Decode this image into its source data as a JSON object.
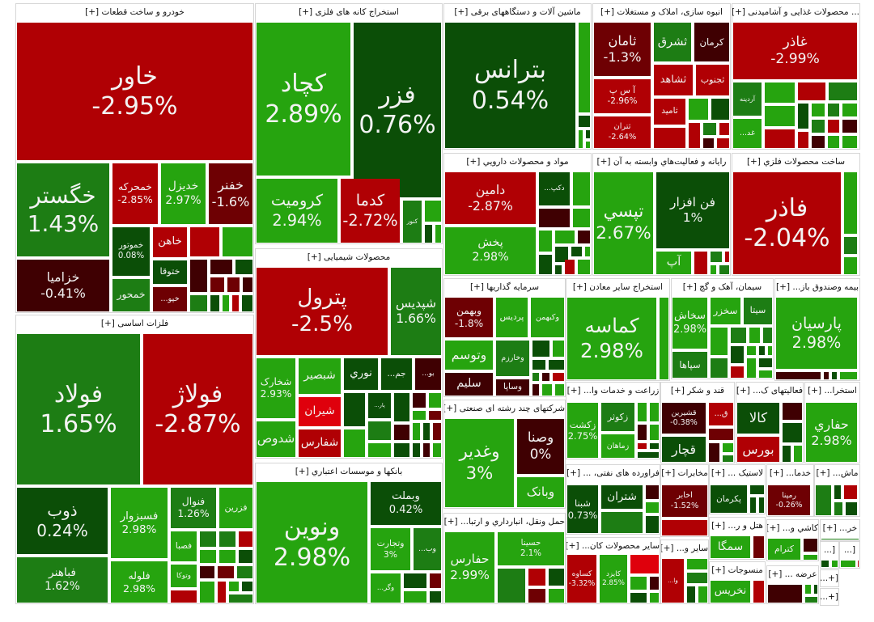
{
  "palette": {
    "R": "#b00004",
    "B": "#df000c",
    "M": "#6e0003",
    "K": "#3f0002",
    "D": "#0b4e07",
    "G": "#1d7d14",
    "L": "#26a40f"
  },
  "sectors": [
    {
      "title": "خودرو و ساخت قطعات [+]",
      "tiles": [
        [
          "خاور",
          "-2.95%",
          "R"
        ],
        [
          "خگستر",
          "1.43%",
          "G"
        ],
        [
          "خزامیا",
          "-0.41%",
          "K"
        ],
        [
          "خمحرکه",
          "-2.85%",
          "R"
        ],
        [
          "خدیزل",
          "2.97%",
          "L"
        ],
        [
          "خفنر",
          "-1.6%",
          "M"
        ],
        [
          "خموتور",
          "0.08%",
          "D"
        ],
        [
          "خمحور",
          "",
          "G"
        ],
        [
          "خاهن",
          "",
          "R"
        ],
        [
          "ختوقا",
          "",
          "D"
        ],
        [
          "خپو...",
          "",
          "M"
        ]
      ]
    },
    {
      "title": "فلزات اساسی [+]",
      "tiles": [
        [
          "فولاد",
          "1.65%",
          "G"
        ],
        [
          "فولاژ",
          "-2.87%",
          "R"
        ],
        [
          "ذوب",
          "0.24%",
          "D"
        ],
        [
          "فباهنر",
          "1.62%",
          "G"
        ],
        [
          "فسبزوار",
          "2.98%",
          "L"
        ],
        [
          "فلوله",
          "2.98%",
          "L"
        ],
        [
          "فنوال",
          "1.26%",
          "G"
        ],
        [
          "فزرین",
          "",
          "L"
        ],
        [
          "فصبا",
          "",
          "L"
        ],
        [
          "وتوکا",
          "",
          "L"
        ]
      ]
    },
    {
      "title": "استخراج کانه های فلزی [+]",
      "tiles": [
        [
          "کچاد",
          "2.89%",
          "L"
        ],
        [
          "فزر",
          "0.76%",
          "D"
        ],
        [
          "کرومیت",
          "2.94%",
          "L"
        ],
        [
          "کدما",
          "-2.72%",
          "R"
        ],
        [
          "کنور",
          "",
          "G"
        ]
      ]
    },
    {
      "title": "محصولات شیمیایی [+]",
      "tiles": [
        [
          "پترول",
          "-2.5%",
          "R"
        ],
        [
          "شپدیس",
          "1.66%",
          "G"
        ],
        [
          "شخارک",
          "2.93%",
          "L"
        ],
        [
          "شدوص",
          "",
          "L"
        ],
        [
          "شبصیر",
          "",
          "L"
        ],
        [
          "شیران",
          "",
          "B"
        ],
        [
          "شفارس",
          "",
          "R"
        ],
        [
          "نوري",
          "",
          "D"
        ],
        [
          "جم...",
          "",
          "D"
        ],
        [
          "بو...",
          "",
          "K"
        ],
        [
          "پار...",
          "",
          "D"
        ]
      ]
    },
    {
      "title": "بانکها و موسسات اعتباري [+]",
      "tiles": [
        [
          "ونوین",
          "2.98%",
          "L"
        ],
        [
          "وبملت",
          "0.42%",
          "D"
        ],
        [
          "وتجارت",
          "3%",
          "L"
        ],
        [
          "وب...",
          "",
          "G"
        ],
        [
          "وگر...",
          "",
          "L"
        ]
      ]
    },
    {
      "title": "ماشین آلات و دستگاههای برقی [+]",
      "tiles": [
        [
          "بترانس",
          "0.54%",
          "D"
        ]
      ]
    },
    {
      "title": "انبوه سازی، املاک و مستغلات [+]",
      "tiles": [
        [
          "ثامان",
          "-1.3%",
          "M"
        ],
        [
          "آ س پ",
          "-2.96%",
          "R"
        ],
        [
          "ثتران",
          "-2.64%",
          "R"
        ],
        [
          "ثشرق",
          "",
          "G"
        ],
        [
          "کرمان",
          "",
          "K"
        ],
        [
          "ثشاهد",
          "",
          "R"
        ],
        [
          "ثجنوب",
          "",
          "R"
        ],
        [
          "ثامید",
          "",
          "R"
        ]
      ]
    },
    {
      "title": "... محصولات غذایی و آشامیدنی [+]",
      "tiles": [
        [
          "غاذر",
          "-2.99%",
          "R"
        ],
        [
          "آردینه",
          "",
          "G"
        ],
        [
          "غد...",
          "",
          "L"
        ]
      ]
    },
    {
      "title": "مواد و محصولات دارويي [+]",
      "tiles": [
        [
          "دامین",
          "-2.87%",
          "R"
        ],
        [
          "دکپ...",
          "",
          "D"
        ],
        [
          "پخش",
          "2.98%",
          "L"
        ]
      ]
    },
    {
      "title": "رایانه و فعالیت‌هاي وابسته به آن [+]",
      "tiles": [
        [
          "تپسي",
          "2.67%",
          "L"
        ],
        [
          "فن افزار",
          "1%",
          "D"
        ],
        [
          "آپ",
          "",
          "L"
        ]
      ]
    },
    {
      "title": "ساخت محصولات فلزي [+]",
      "tiles": [
        [
          "فاذر",
          "-2.04%",
          "R"
        ]
      ]
    },
    {
      "title": "سرمایه گذاریها [+]",
      "tiles": [
        [
          "وبهمن",
          "-1.8%",
          "M"
        ],
        [
          "پردیس",
          "",
          "L"
        ],
        [
          "وکبهمن",
          "",
          "L"
        ],
        [
          "وتوسم",
          "",
          "L"
        ],
        [
          "وخارزم",
          "",
          "G"
        ],
        [
          "سلیم",
          "",
          "K"
        ],
        [
          "وساپا",
          "",
          "K"
        ]
      ]
    },
    {
      "title": "استخراج سایر معادن [+]",
      "tiles": [
        [
          "کماسه",
          "2.98%",
          "L"
        ]
      ]
    },
    {
      "title": "سیمان، آهک و گچ [+]",
      "tiles": [
        [
          "سخاش",
          "2.98%",
          "L"
        ],
        [
          "سپاها",
          "",
          "G"
        ],
        [
          "سخزر",
          "",
          "L"
        ],
        [
          "سیتا",
          "",
          "G"
        ]
      ]
    },
    {
      "title": "بیمه وصندوق باز... [+]",
      "tiles": [
        [
          "پارسیان",
          "2.98%",
          "L"
        ]
      ]
    },
    {
      "title": "شرکتهای چند رشته ای صنعتی [+]",
      "tiles": [
        [
          "وغدیر",
          "3%",
          "L"
        ],
        [
          "وصنا",
          "0%",
          "K"
        ],
        [
          "وبانک",
          "",
          "L"
        ]
      ]
    },
    {
      "title": "حمل ونقل، انبارداري و ارتبا... [+]",
      "tiles": [
        [
          "حفارس",
          "2.99%",
          "L"
        ],
        [
          "حسینا",
          "2.1%",
          "L"
        ]
      ]
    },
    {
      "title": "زراعت و خدمات وا... [+]",
      "tiles": [
        [
          "زکشت",
          "2.75%",
          "L"
        ],
        [
          "زکوثر",
          "",
          "G"
        ],
        [
          "زماهان",
          "",
          "L"
        ]
      ]
    },
    {
      "title": "قند و شکر [+]",
      "tiles": [
        [
          "قشیرین",
          "-0.38%",
          "K"
        ],
        [
          "ق...",
          "",
          "R"
        ],
        [
          "قچار",
          "",
          "D"
        ]
      ]
    },
    {
      "title": "فعالیتهای ک... [+]",
      "tiles": [
        [
          "کالا",
          "",
          "D"
        ],
        [
          "بورس",
          "",
          "R"
        ]
      ]
    },
    {
      "title": "استخرا... [+]",
      "tiles": [
        [
          "حفاري",
          "2.98%",
          "L"
        ]
      ]
    },
    {
      "title": "فراورده های نفتی، ... [+]",
      "tiles": [
        [
          "شبنا",
          "0.73%",
          "D"
        ],
        [
          "شتران",
          "",
          "D"
        ]
      ]
    },
    {
      "title": "سایر محصولات کان... [+]",
      "tiles": [
        [
          "کساوه",
          "-3.32%",
          "R"
        ],
        [
          "کایزد",
          "2.85%",
          "L"
        ]
      ]
    },
    {
      "title": "مخابرات [+]",
      "tiles": [
        [
          "اخابر",
          "-1.52%",
          "M"
        ]
      ]
    },
    {
      "title": "سایر و... [+]",
      "tiles": [
        [
          "وا...",
          "",
          "R"
        ]
      ]
    },
    {
      "title": "لاستیک ... [+]",
      "tiles": [
        [
          "پکرمان",
          "",
          "D"
        ]
      ]
    },
    {
      "title": "هتل و ر... [+]",
      "tiles": [
        [
          "سمگا",
          "",
          "L"
        ]
      ]
    },
    {
      "title": "منسوجات [+]",
      "tiles": [
        [
          "نخریس",
          "",
          "L"
        ]
      ]
    },
    {
      "title": "خدما... [+]",
      "tiles": [
        [
          "رمپنا",
          "-0.26%",
          "M"
        ]
      ]
    },
    {
      "title": "ماش... [+]",
      "tiles": []
    },
    {
      "title": "کاشي و... [+]",
      "tiles": [
        [
          "کترام",
          "",
          "L"
        ]
      ]
    },
    {
      "title": "عرضه ... [+]",
      "tiles": []
    },
    {
      "title": "خر... [+]",
      "tiles": []
    },
    {
      "title": "[...",
      "tiles": []
    },
    {
      "title": "[...",
      "tiles": []
    },
    {
      "title": "[+...",
      "tiles": []
    },
    {
      "title": "[+...",
      "tiles": []
    }
  ]
}
